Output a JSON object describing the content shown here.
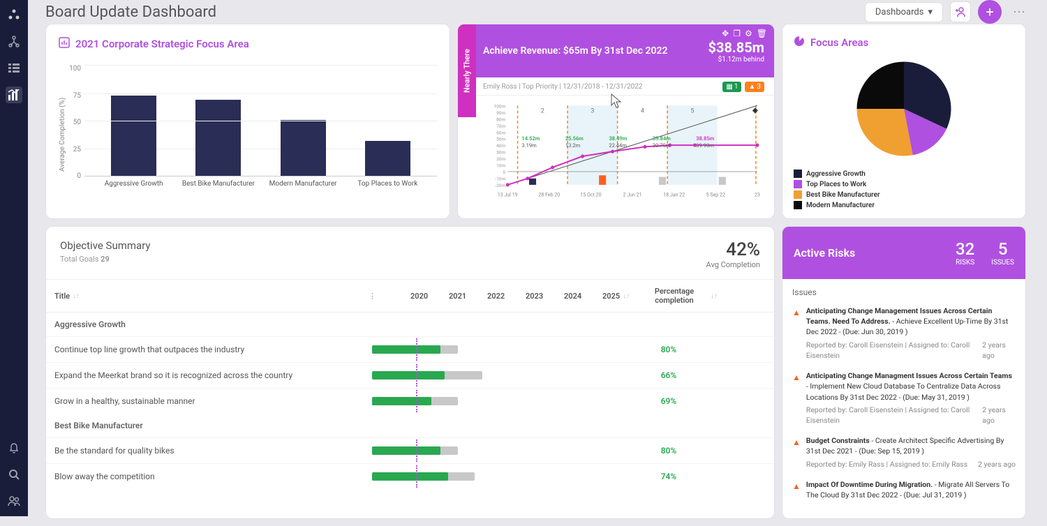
{
  "header": {
    "title": "Board Update Dashboard",
    "dashboards_label": "Dashboards"
  },
  "bar_card": {
    "title": "2021 Corporate Strategic Focus Area",
    "y_label": "Average Completion (%)",
    "y_max": 100,
    "y_ticks": [
      100,
      75,
      50,
      25,
      0
    ],
    "bars": [
      {
        "label": "Aggressive Growth",
        "value": 72
      },
      {
        "label": "Best Bike Manufacturer",
        "value": 68
      },
      {
        "label": "Modern Manufacturer",
        "value": 50
      },
      {
        "label": "Top Places to Work",
        "value": 31
      }
    ],
    "bar_color": "#2a2d55"
  },
  "revenue_card": {
    "side_label": "Nearly There",
    "title": "Achieve Revenue: $65m By 31st Dec 2022",
    "amount": "$38.85m",
    "behind": "$1.12m behind",
    "owner": "Emily Ross",
    "priority": "Top Priority",
    "date_range": "12/31/2018 - 12/31/2022",
    "badge_green": "1",
    "badge_orange": "3",
    "chart": {
      "y_ticks": [
        "100m",
        "90m",
        "80m",
        "70m",
        "60m",
        "50m",
        "40m",
        "30m",
        "20m",
        "10m",
        "0",
        "-10m",
        "-20m"
      ],
      "x_labels": [
        "13 Jul 19",
        "28 Feb 20",
        "15 Oct 20",
        "2 Jun 21",
        "18 Jan 22",
        "5 Sep 22",
        "23"
      ],
      "quarters": [
        "2",
        "3",
        "4",
        "5"
      ],
      "annotations": [
        {
          "t": "14.52m",
          "c": "#2aa850"
        },
        {
          "t": "3.19m",
          "c": "#555"
        },
        {
          "t": "25.56m",
          "c": "#2aa850"
        },
        {
          "t": "13.2m",
          "c": "#555"
        },
        {
          "t": "38.49m",
          "c": "#2aa850"
        },
        {
          "t": "22.44m",
          "c": "#555"
        },
        {
          "t": "39.84m",
          "c": "#2aa850"
        },
        {
          "t": "30.75m",
          "c": "#555"
        },
        {
          "t": "38.85m",
          "c": "#d030c0"
        },
        {
          "t": "39.93m",
          "c": "#555"
        }
      ],
      "line_points": [
        [
          0,
          100
        ],
        [
          8,
          92
        ],
        [
          18,
          78
        ],
        [
          30,
          64
        ],
        [
          42,
          58
        ],
        [
          55,
          52
        ],
        [
          65,
          50
        ],
        [
          75,
          50
        ],
        [
          100,
          50
        ]
      ],
      "line_color": "#d030c0",
      "target_line": [
        [
          0,
          100
        ],
        [
          100,
          0
        ]
      ],
      "bars": [
        {
          "x": 10,
          "h": 8,
          "c": "#2a2d55"
        },
        {
          "x": 38,
          "h": 12,
          "c": "#ff6020"
        },
        {
          "x": 62,
          "h": 10,
          "c": "#c8c8c8"
        },
        {
          "x": 86,
          "h": 10,
          "c": "#c8c8c8"
        }
      ]
    }
  },
  "pie_card": {
    "title": "Focus Areas",
    "slices": [
      {
        "label": "Aggressive Growth",
        "color": "#1a1d3a",
        "pct": 32
      },
      {
        "label": "Top Places to Work",
        "color": "#b050e0",
        "pct": 15
      },
      {
        "label": "Best Bike Manufacturer",
        "color": "#f0a030",
        "pct": 28
      },
      {
        "label": "Modern Manufacturer",
        "color": "#0a0a0a",
        "pct": 25
      }
    ]
  },
  "summary": {
    "title": "Objective Summary",
    "sub_label": "Total Goals",
    "total_goals": "29",
    "avg_pct": "42%",
    "avg_label": "Avg Completion",
    "columns": {
      "title": "Title",
      "years": [
        "2020",
        "2021",
        "2022",
        "2023",
        "2024",
        "2025"
      ],
      "pct": "Percentage completion"
    },
    "today_pos_pct": 18,
    "groups": [
      {
        "name": "Aggressive Growth",
        "rows": [
          {
            "title": "Continue top line growth that outpaces the industry",
            "start": 0,
            "end": 35,
            "pct": 80
          },
          {
            "title": "Expand the Meerkat brand so it is recognized across the country",
            "start": 0,
            "end": 45,
            "pct": 66
          },
          {
            "title": "Grow in a healthy, sustainable manner",
            "start": 0,
            "end": 35,
            "pct": 69
          }
        ]
      },
      {
        "name": "Best Bike Manufacturer",
        "rows": [
          {
            "title": "Be the standard for quality bikes",
            "start": 0,
            "end": 35,
            "pct": 80
          },
          {
            "title": "Blow away the competition",
            "start": 0,
            "end": 42,
            "pct": 74
          }
        ]
      }
    ]
  },
  "risks": {
    "title": "Active Risks",
    "risks_count": "32",
    "risks_label": "RISKS",
    "issues_count": "5",
    "issues_label": "ISSUES",
    "section_label": "Issues",
    "items": [
      {
        "title": "Anticipating Change Management Issues Across Certain Teams. Need To Address.",
        "link": "Achieve Excellent Up-Time By 31st Dec 2022",
        "due": "(Due: Jun 30, 2019 )",
        "reported_by": "Caroll Eisenstein",
        "assigned_to": "Caroll Eisenstein",
        "age": "2 years ago"
      },
      {
        "title": "Anticipating Change Managment Issues Across Certain Teams",
        "link": "Implement New Cloud Database To Centralize Data Across Locations By 31st Dec 2022",
        "due": "(Due: May 31, 2019 )",
        "reported_by": "Caroll Eisenstein",
        "assigned_to": "Caroll Eisenstein",
        "age": "2 years ago"
      },
      {
        "title": "Budget Constraints",
        "link": "Create Architect Specific Advertising By 31st Dec 2021",
        "due": "(Due: Sep 15, 2019 )",
        "reported_by": "Emily Rass",
        "assigned_to": "Emily Rass",
        "age": "2 years ago"
      },
      {
        "title": "Impact Of Downtime During Migration.",
        "link": "Migrate All Servers To The Cloud By 31st Dec 2022",
        "due": "(Due: Jul 31, 2019 )",
        "reported_by": "",
        "assigned_to": "",
        "age": ""
      }
    ]
  },
  "colors": {
    "brand": "#b050e0",
    "navy": "#1a1d3a",
    "green": "#2aa850",
    "orange": "#ff8020",
    "pink": "#d030c0",
    "gold": "#f0a030"
  }
}
